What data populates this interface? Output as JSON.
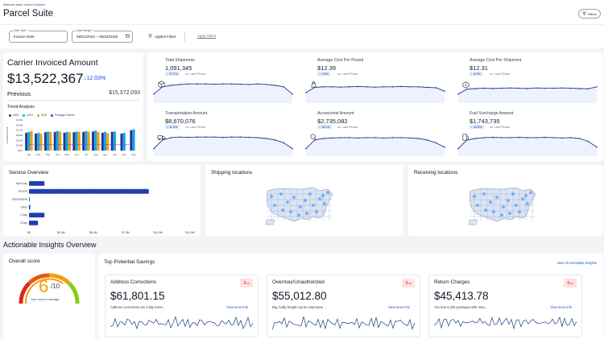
{
  "header": {
    "welcome": "Welcome back, Lauren Compton",
    "title": "Parcel Suite",
    "filters_label": "Filters"
  },
  "filter_bar": {
    "date_type": {
      "label": "Date Type *",
      "value": "Invoice Date"
    },
    "date_range": {
      "label": "Date Range *",
      "value": "09/01/2024 – 09/24/2025"
    },
    "applied_filters_label": "Applied Filters",
    "apply_filters_label": "Apply Filters"
  },
  "carrier_invoiced": {
    "title": "Carrier Invoiced Amount",
    "amount": "$13,522,367",
    "change": "↓12.03%",
    "previous_label": "Previous",
    "previous_value": "$15,372,093",
    "trend_title": "Trend Analysis",
    "legend": [
      {
        "name": "2023",
        "color": "#1e3a8a"
      },
      {
        "name": "2024",
        "color": "#0ea5e9"
      },
      {
        "name": "2025",
        "color": "#f59e0b"
      },
      {
        "name": "Package Volume",
        "color": "#6d28d9"
      }
    ]
  },
  "metrics": [
    {
      "title": "Total Shipments",
      "value": "1,091,345",
      "badge": "↓ 17.2%",
      "vs": "vs. Last Period",
      "icon": "package-icon"
    },
    {
      "title": "Average Cost Per Pound",
      "value": "$12.39",
      "badge": "↑ 1.9%",
      "vs": "vs. Last Period",
      "icon": "dollar-weight-icon"
    },
    {
      "title": "Average Cost Per Shipment",
      "value": "$12.31",
      "badge": "↑ 6.2%",
      "vs": "vs. Last Period",
      "icon": "dollar-package-icon"
    },
    {
      "title": "Transportation Amount",
      "value": "$8,670,076",
      "badge": "↓ 11.5%",
      "vs": "vs. Last Period",
      "icon": "truck-icon"
    },
    {
      "title": "Accessorial Amount",
      "value": "$2,735,082",
      "badge": "↓ 15.2%",
      "vs": "vs. Last Period",
      "icon": "dollar-search-icon"
    },
    {
      "title": "Fuel Surcharge Amount",
      "value": "$1,743,735",
      "badge": "↓ 12.5%",
      "vs": "vs. Last Period",
      "icon": "fuel-icon"
    }
  ],
  "service_overview": {
    "title": "Service Overview"
  },
  "shipping_locations": {
    "title": "Shipping locations"
  },
  "receiving_locations": {
    "title": "Receiving locations"
  },
  "insights": {
    "title": "Actionable Insights Overview",
    "overall_score": {
      "title": "Overall score",
      "score": "6",
      "out_of": "/10",
      "value": 6,
      "note": "Your score is average"
    },
    "top_savings": {
      "title": "Top Potential Savings",
      "view_all": "View All Actionable Insights",
      "cards": [
        {
          "title": "Address Corrections",
          "score": "3",
          "score_max": "/10",
          "amount": "$61,801.15",
          "desc": "Address corrections are a big mone...",
          "more": "View more info"
        },
        {
          "title": "Overmax/Unauthorized",
          "score": "3",
          "score_max": "/10",
          "amount": "$55,012.80",
          "desc": "Big, bulky freight can be expensive ...",
          "more": "View more info"
        },
        {
          "title": "Return Charges",
          "score": "6",
          "score_max": "/10",
          "amount": "$45,413.78",
          "desc": "You had 4,325 packages with retur...",
          "more": "View more info"
        }
      ]
    }
  },
  "chart_data": [
    {
      "type": "bar",
      "title": "Trend Analysis",
      "ylabel": "Invoiced Amount",
      "categories": [
        "Jan",
        "Feb",
        "Mar",
        "Apr",
        "May",
        "Jun",
        "Jul",
        "Aug",
        "Sep",
        "Oct",
        "Nov",
        "Dec"
      ],
      "y_ticks": [
        "$1.8M",
        "$1.5M",
        "$1.2M",
        "$0.9M",
        "$0.6M",
        "$0.3M",
        "$0.0"
      ],
      "ylim": [
        0,
        1.8
      ],
      "series": [
        {
          "name": "2023",
          "values": [
            1.05,
            1.0,
            1.08,
            1.1,
            1.05,
            1.08,
            1.1,
            1.12,
            1.05,
            1.1,
            1.0,
            1.2
          ]
        },
        {
          "name": "2024",
          "values": [
            1.1,
            1.05,
            1.12,
            1.15,
            1.1,
            1.12,
            1.15,
            1.18,
            1.1,
            1.12,
            1.05,
            1.25
          ]
        },
        {
          "name": "2025",
          "values": [
            1.15,
            1.0,
            1.1,
            1.12,
            1.08,
            1.1,
            1.12,
            1.1,
            1.02,
            0.0,
            0.0,
            0.0
          ]
        },
        {
          "name": "Package Volume",
          "values": [
            0.35,
            0.33,
            0.36,
            0.36,
            0.35,
            0.36,
            0.37,
            0.37,
            0.35,
            0.37,
            0.34,
            0.4
          ]
        }
      ],
      "x_labels": [
        "Jan",
        "Feb",
        "Mar",
        "Apr",
        "May",
        "Jun",
        "Jul",
        "Aug",
        "Sep",
        "Oct",
        "Nov",
        "Dec"
      ]
    },
    {
      "type": "bar",
      "title": "Service Overview",
      "orientation": "horizontal",
      "categories": [
        "Next Day",
        "Ground",
        "International",
        "Other",
        "2 Day",
        "3 Day"
      ],
      "values": [
        1.2,
        9.3,
        0.05,
        0.1,
        1.2,
        0.7
      ],
      "x_ticks": [
        "$0",
        "$2.5M",
        "$5.0M",
        "$7.5M",
        "$10.0M",
        "$12.5M"
      ],
      "xlim": [
        0,
        12.5
      ]
    }
  ]
}
